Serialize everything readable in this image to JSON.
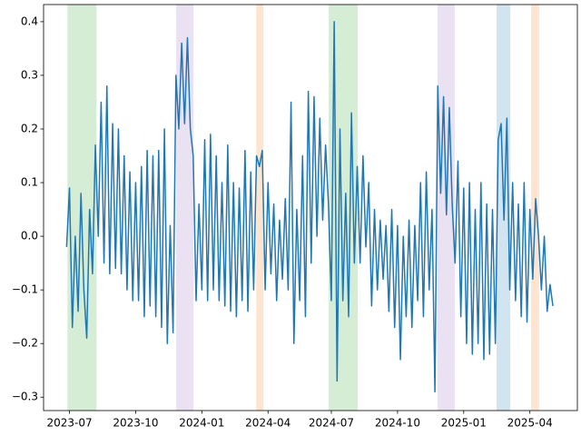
{
  "chart_data": {
    "type": "line",
    "categories": [
      null,
      "2023-07",
      null,
      null,
      null,
      null,
      null,
      null,
      null,
      null,
      null,
      null,
      null,
      null,
      null,
      null,
      null,
      null,
      null,
      null,
      null,
      null,
      null,
      null,
      "2023-10",
      null,
      null,
      null,
      null,
      null,
      null,
      null,
      null,
      null,
      null,
      null,
      null,
      null,
      null,
      null,
      null,
      null,
      null,
      null,
      null,
      null,
      null,
      "2024-01",
      null,
      null,
      null,
      null,
      null,
      null,
      null,
      null,
      null,
      null,
      null,
      null,
      null,
      null,
      null,
      null,
      null,
      null,
      null,
      null,
      null,
      null,
      "2024-04",
      null,
      null,
      null,
      null,
      null,
      null,
      null,
      null,
      null,
      null,
      null,
      null,
      null,
      null,
      null,
      null,
      null,
      null,
      null,
      null,
      null,
      "2024-07",
      null,
      null,
      null,
      null,
      null,
      null,
      null,
      null,
      null,
      null,
      null,
      null,
      null,
      null,
      null,
      null,
      null,
      null,
      null,
      null,
      null,
      null,
      "2024-10",
      null,
      null,
      null,
      null,
      null,
      null,
      null,
      null,
      null,
      null,
      null,
      null,
      null,
      null,
      null,
      null,
      null,
      null,
      null,
      null,
      null,
      null,
      "2025-01",
      null,
      null,
      null,
      null,
      null,
      null,
      null,
      null,
      null,
      null,
      null,
      null,
      null,
      null,
      null,
      null,
      null,
      null,
      null,
      null,
      null,
      null,
      "2025-04",
      null,
      null,
      null,
      null,
      null,
      null,
      null,
      null
    ],
    "values": [
      -0.02,
      0.09,
      -0.17,
      0.0,
      -0.14,
      0.08,
      -0.1,
      -0.19,
      0.05,
      -0.07,
      0.17,
      0.0,
      0.25,
      -0.05,
      0.28,
      -0.07,
      0.21,
      -0.06,
      0.2,
      -0.07,
      0.15,
      -0.1,
      0.12,
      -0.12,
      0.1,
      -0.12,
      0.13,
      -0.15,
      0.16,
      -0.13,
      0.15,
      -0.15,
      0.16,
      -0.17,
      0.2,
      -0.2,
      0.02,
      -0.18,
      0.3,
      0.2,
      0.36,
      0.21,
      0.37,
      0.2,
      0.15,
      -0.12,
      0.06,
      -0.1,
      0.18,
      -0.12,
      0.19,
      -0.1,
      0.15,
      -0.12,
      0.1,
      -0.13,
      0.17,
      -0.14,
      0.1,
      -0.15,
      0.09,
      -0.12,
      0.16,
      -0.14,
      0.12,
      -0.1,
      0.15,
      0.13,
      0.16,
      -0.1,
      0.1,
      -0.07,
      0.06,
      -0.12,
      0.03,
      -0.08,
      0.07,
      -0.1,
      0.25,
      -0.2,
      0.05,
      -0.12,
      0.15,
      -0.15,
      0.27,
      -0.05,
      0.26,
      0.0,
      0.22,
      0.03,
      0.17,
      0.06,
      -0.12,
      0.4,
      -0.27,
      0.2,
      -0.12,
      0.08,
      -0.15,
      0.23,
      -0.05,
      0.13,
      -0.05,
      0.15,
      -0.02,
      0.1,
      -0.13,
      0.05,
      -0.1,
      0.03,
      -0.08,
      0.02,
      -0.14,
      0.05,
      -0.17,
      0.02,
      -0.23,
      0.0,
      -0.15,
      0.03,
      -0.17,
      0.02,
      -0.12,
      0.1,
      -0.15,
      0.12,
      -0.1,
      0.05,
      -0.29,
      0.28,
      0.08,
      0.26,
      0.04,
      0.24,
      0.06,
      -0.05,
      0.14,
      -0.15,
      0.09,
      -0.2,
      0.1,
      -0.22,
      0.05,
      -0.2,
      0.1,
      -0.23,
      0.06,
      -0.22,
      0.05,
      -0.2,
      0.18,
      0.21,
      0.03,
      0.22,
      -0.1,
      0.1,
      -0.12,
      0.06,
      -0.15,
      0.1,
      -0.16,
      0.05,
      -0.08,
      0.07,
      0.0,
      -0.1,
      0.0,
      -0.14,
      -0.09,
      -0.13
    ],
    "color": "#1f77b4",
    "spans": [
      {
        "start": 0.3,
        "end": 10.4,
        "color": "#2ca02c"
      },
      {
        "start": 38.1,
        "end": 44.1,
        "color": "#9467bd"
      },
      {
        "start": 65.9,
        "end": 68.4,
        "color": "#ff7f0e"
      },
      {
        "start": 91.1,
        "end": 101.2,
        "color": "#2ca02c"
      },
      {
        "start": 128.9,
        "end": 134.9,
        "color": "#9467bd"
      },
      {
        "start": 149.4,
        "end": 154.2,
        "color": "#1f77b4"
      },
      {
        "start": 161.4,
        "end": 164.2,
        "color": "#ff7f0e"
      }
    ],
    "xlim": [
      -8,
      177.5
    ],
    "ylim": [
      -0.325,
      0.432
    ],
    "yticks": [
      {
        "value": -0.3,
        "label": "−0.3"
      },
      {
        "value": -0.2,
        "label": "−0.2"
      },
      {
        "value": -0.1,
        "label": "−0.1"
      },
      {
        "value": 0,
        "label": "0.0"
      },
      0.1,
      0.2,
      0.3,
      0.4
    ],
    "grid": false
  }
}
